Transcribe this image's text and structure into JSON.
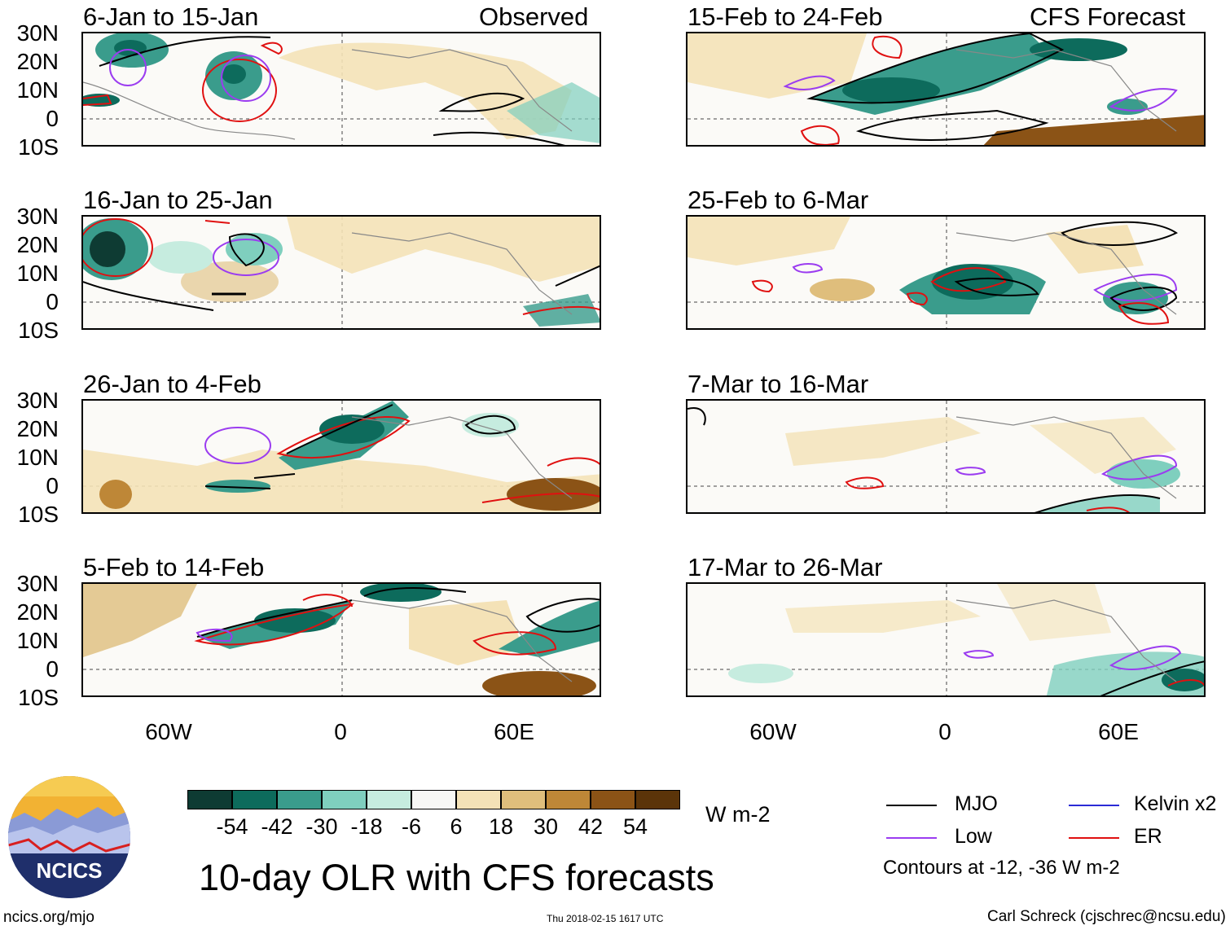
{
  "header": {
    "left_label": "Observed",
    "right_label": "CFS Forecast"
  },
  "panels": {
    "observed": [
      {
        "title": "6-Jan to 15-Jan"
      },
      {
        "title": "16-Jan to 25-Jan"
      },
      {
        "title": "26-Jan to 4-Feb"
      },
      {
        "title": "5-Feb to 14-Feb"
      }
    ],
    "forecast": [
      {
        "title": "15-Feb to 24-Feb"
      },
      {
        "title": "25-Feb to 6-Mar"
      },
      {
        "title": "7-Mar to 16-Mar"
      },
      {
        "title": "17-Mar to 26-Mar"
      }
    ]
  },
  "axes": {
    "lat_labels": [
      "30N",
      "20N",
      "10N",
      "0",
      "10S"
    ],
    "lon_labels": [
      "60W",
      "0",
      "60E"
    ]
  },
  "colorbar": {
    "colors": [
      "#0e3b33",
      "#0d6b5c",
      "#3a9c8c",
      "#7fcfbe",
      "#c6ecdf",
      "#f7f7f5",
      "#f4e2b7",
      "#dfbe7c",
      "#be8737",
      "#8b5316",
      "#5b3409"
    ],
    "labels": [
      "-54",
      "-42",
      "-30",
      "-18",
      "-6",
      "6",
      "18",
      "30",
      "42",
      "54"
    ],
    "units": "W m-2"
  },
  "title": "10-day OLR with CFS forecasts",
  "legend": {
    "items": [
      {
        "label": "MJO",
        "color": "#000000"
      },
      {
        "label": "Kelvin x2",
        "color": "#2b2bd6"
      },
      {
        "label": "Low",
        "color": "#9b3cf0"
      },
      {
        "label": "ER",
        "color": "#e01010"
      }
    ],
    "note": "Contours at -12, -36 W m-2"
  },
  "logo": {
    "text": "NCICS"
  },
  "footer": {
    "url": "ncics.org/mjo",
    "timestamp": "Thu 2018-02-15 1617 UTC",
    "credit": "Carl Schreck (cjschrec@ncsu.edu)"
  }
}
